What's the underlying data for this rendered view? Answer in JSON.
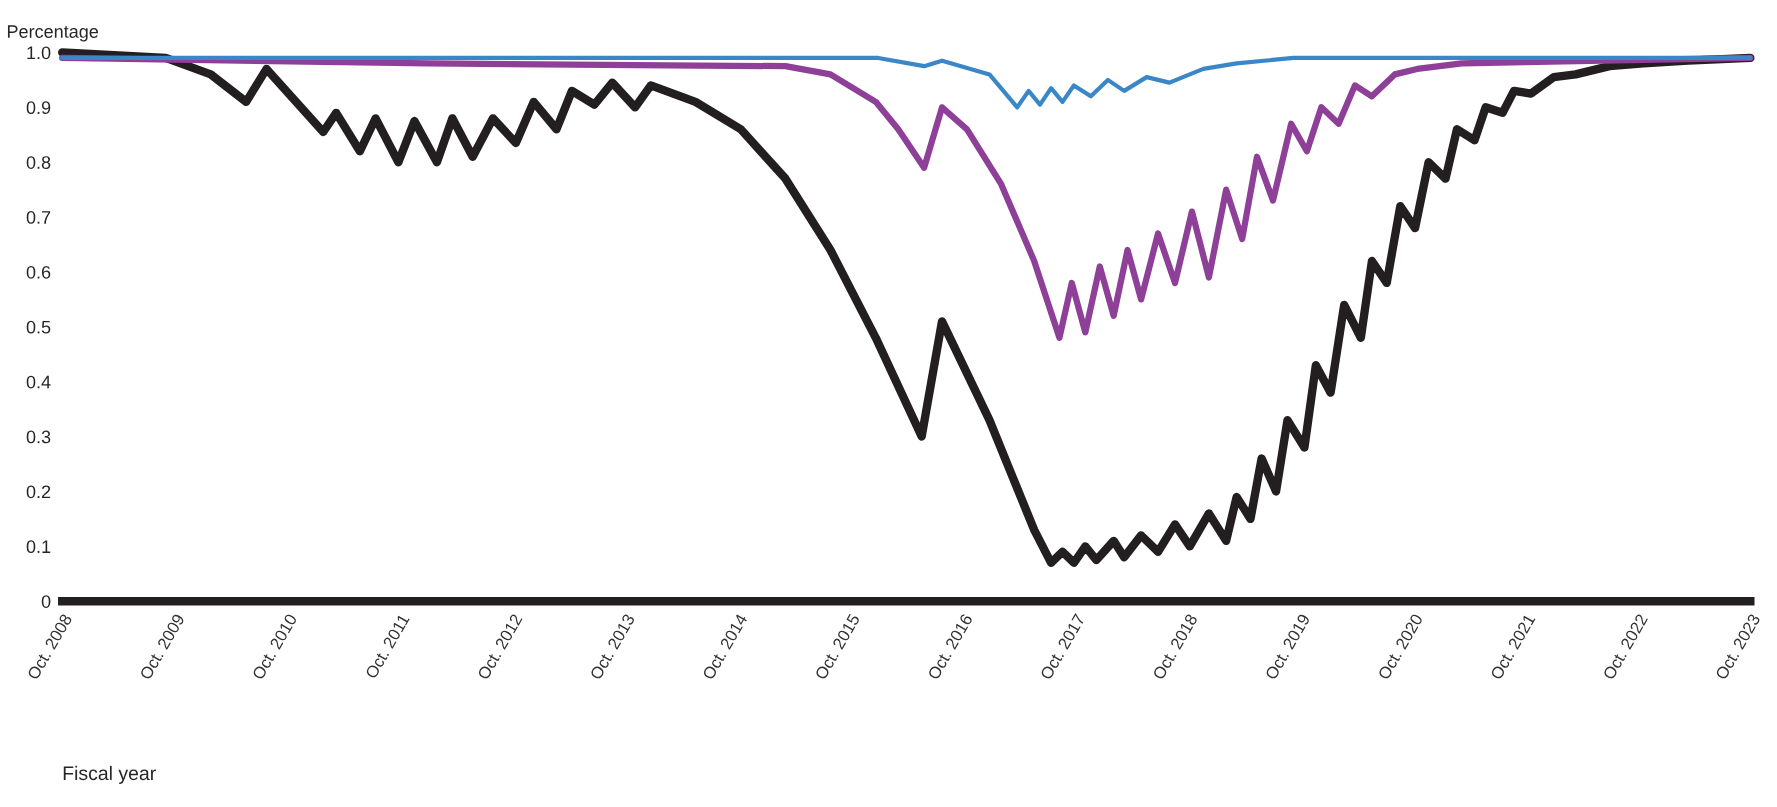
{
  "chart_data": {
    "type": "line",
    "xlabel": "Fiscal year",
    "ylabel": "Percentage",
    "xlim": [
      "2008-10-01",
      "2023-10-01"
    ],
    "ylim": [
      0,
      1.0
    ],
    "xticks": [
      {
        "value": "2008-10-01",
        "label": "Oct. 2008"
      },
      {
        "value": "2009-10-01",
        "label": "Oct. 2009"
      },
      {
        "value": "2010-10-01",
        "label": "Oct. 2010"
      },
      {
        "value": "2011-10-01",
        "label": "Oct. 2011"
      },
      {
        "value": "2012-10-01",
        "label": "Oct. 2012"
      },
      {
        "value": "2013-10-01",
        "label": "Oct. 2013"
      },
      {
        "value": "2014-10-01",
        "label": "Oct. 2014"
      },
      {
        "value": "2015-10-01",
        "label": "Oct. 2015"
      },
      {
        "value": "2016-10-01",
        "label": "Oct. 2016"
      },
      {
        "value": "2017-10-01",
        "label": "Oct. 2017"
      },
      {
        "value": "2018-10-01",
        "label": "Oct. 2018"
      },
      {
        "value": "2019-10-01",
        "label": "Oct. 2019"
      },
      {
        "value": "2020-10-01",
        "label": "Oct. 2020"
      },
      {
        "value": "2021-10-01",
        "label": "Oct. 2021"
      },
      {
        "value": "2022-10-01",
        "label": "Oct. 2022"
      },
      {
        "value": "2023-10-01",
        "label": "Oct. 2023"
      }
    ],
    "yticks": [
      0,
      0.1,
      0.2,
      0.3,
      0.4,
      0.5,
      0.6,
      0.7,
      0.8,
      0.9,
      {
        "value": 1.0,
        "label": "1.0"
      }
    ],
    "grid": false,
    "marker": "none",
    "line_style": "solid",
    "series": [
      {
        "color": "#231f20",
        "x": [
          "2008-10-01",
          "2009-09-02",
          "2010-01-26",
          "2010-05-21",
          "2010-07-26",
          "2011-01-26",
          "2011-03-09",
          "2011-05-25",
          "2011-07-15",
          "2011-09-27",
          "2011-11-18",
          "2012-01-30",
          "2012-03-20",
          "2012-05-25",
          "2012-07-30",
          "2012-10-12",
          "2012-12-09",
          "2013-02-21",
          "2013-04-12",
          "2013-06-24",
          "2013-08-21",
          "2013-11-03",
          "2013-12-24",
          "2014-05-18",
          "2014-10-12",
          "2015-03-06",
          "2015-07-30",
          "2015-12-24",
          "2016-05-21",
          "2016-07-26",
          "2016-12-27",
          "2017-05-21",
          "2017-07-15",
          "2017-08-21",
          "2017-09-27",
          "2017-11-03",
          "2017-12-09",
          "2018-02-03",
          "2018-03-09",
          "2018-05-03",
          "2018-06-27",
          "2018-08-21",
          "2018-10-08",
          "2018-12-09",
          "2019-02-03",
          "2019-03-09",
          "2019-04-23",
          "2019-05-29",
          "2019-07-15",
          "2019-08-21",
          "2019-10-15",
          "2019-11-21",
          "2020-01-08",
          "2020-02-21",
          "2020-04-15",
          "2020-05-21",
          "2020-07-08",
          "2020-08-21",
          "2020-10-08",
          "2020-11-21",
          "2021-01-15",
          "2021-02-21",
          "2021-04-19",
          "2021-05-25",
          "2021-07-19",
          "2021-08-25",
          "2021-10-19",
          "2022-01-01",
          "2022-03-13",
          "2022-07-01",
          "2022-10-19",
          "2023-03-13",
          "2023-10-01"
        ],
        "values": [
          1.0,
          0.99,
          0.96,
          0.91,
          0.97,
          0.855,
          0.89,
          0.82,
          0.88,
          0.8,
          0.875,
          0.8,
          0.88,
          0.81,
          0.88,
          0.835,
          0.91,
          0.86,
          0.93,
          0.905,
          0.945,
          0.9,
          0.94,
          0.91,
          0.86,
          0.77,
          0.64,
          0.48,
          0.3,
          0.51,
          0.33,
          0.13,
          0.07,
          0.09,
          0.07,
          0.1,
          0.075,
          0.11,
          0.08,
          0.12,
          0.09,
          0.14,
          0.1,
          0.16,
          0.11,
          0.19,
          0.15,
          0.26,
          0.2,
          0.33,
          0.28,
          0.43,
          0.38,
          0.54,
          0.48,
          0.62,
          0.58,
          0.72,
          0.68,
          0.8,
          0.77,
          0.86,
          0.84,
          0.9,
          0.89,
          0.93,
          0.925,
          0.955,
          0.96,
          0.975,
          0.98,
          0.985,
          0.99
        ]
      },
      {
        "color": "#8e3f98",
        "x": [
          "2008-10-01",
          "2012-01-01",
          "2015-03-06",
          "2015-07-30",
          "2015-12-24",
          "2016-03-06",
          "2016-05-29",
          "2016-07-26",
          "2016-10-15",
          "2017-02-03",
          "2017-05-21",
          "2017-08-11",
          "2017-09-20",
          "2017-11-03",
          "2017-12-20",
          "2018-02-03",
          "2018-03-20",
          "2018-05-03",
          "2018-06-27",
          "2018-08-21",
          "2018-10-15",
          "2018-12-09",
          "2019-02-03",
          "2019-03-27",
          "2019-05-14",
          "2019-07-05",
          "2019-09-02",
          "2019-10-23",
          "2019-12-09",
          "2020-02-03",
          "2020-03-27",
          "2020-05-21",
          "2020-08-03",
          "2020-10-15",
          "2021-03-09",
          "2023-10-01"
        ],
        "values": [
          0.99,
          0.98,
          0.975,
          0.96,
          0.91,
          0.86,
          0.79,
          0.9,
          0.86,
          0.76,
          0.62,
          0.48,
          0.58,
          0.49,
          0.61,
          0.52,
          0.64,
          0.55,
          0.67,
          0.58,
          0.71,
          0.59,
          0.75,
          0.66,
          0.81,
          0.73,
          0.87,
          0.82,
          0.9,
          0.87,
          0.94,
          0.92,
          0.96,
          0.97,
          0.98,
          0.99
        ]
      },
      {
        "color": "#3a87c8",
        "x": [
          "2008-10-01",
          "2016-01-01",
          "2016-05-29",
          "2016-07-26",
          "2016-12-27",
          "2017-03-27",
          "2017-05-03",
          "2017-06-09",
          "2017-07-15",
          "2017-08-21",
          "2017-09-27",
          "2017-11-21",
          "2018-01-15",
          "2018-03-09",
          "2018-05-21",
          "2018-08-03",
          "2018-11-21",
          "2019-03-09",
          "2019-09-09",
          "2023-10-01"
        ],
        "values": [
          0.99,
          0.99,
          0.975,
          0.985,
          0.96,
          0.9,
          0.93,
          0.905,
          0.935,
          0.91,
          0.94,
          0.92,
          0.95,
          0.93,
          0.955,
          0.945,
          0.97,
          0.98,
          0.99,
          0.99
        ]
      }
    ]
  }
}
